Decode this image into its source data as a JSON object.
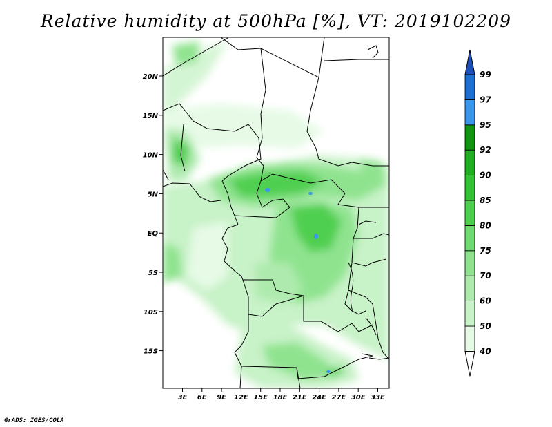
{
  "title": "Relative humidity at 500hPa [%], VT: 2019102209",
  "credit": "GrADS: IGES/COLA",
  "map": {
    "lat_labels": [
      "20N",
      "15N",
      "10N",
      "5N",
      "EQ",
      "5S",
      "10S",
      "15S"
    ],
    "lon_labels": [
      "3E",
      "6E",
      "9E",
      "12E",
      "15E",
      "18E",
      "21E",
      "24E",
      "27E",
      "30E",
      "33E"
    ]
  },
  "colorbar": {
    "levels": [
      "40",
      "50",
      "60",
      "70",
      "75",
      "80",
      "85",
      "90",
      "92",
      "95",
      "97",
      "99"
    ],
    "colors": [
      "#ffffff",
      "#e6fae6",
      "#c8f2c8",
      "#aeeaae",
      "#8fe38f",
      "#6fda6f",
      "#4fcf4f",
      "#36c236",
      "#22ae22",
      "#119411",
      "#3c96ea",
      "#1f6fd3",
      "#1a50b8"
    ]
  }
}
